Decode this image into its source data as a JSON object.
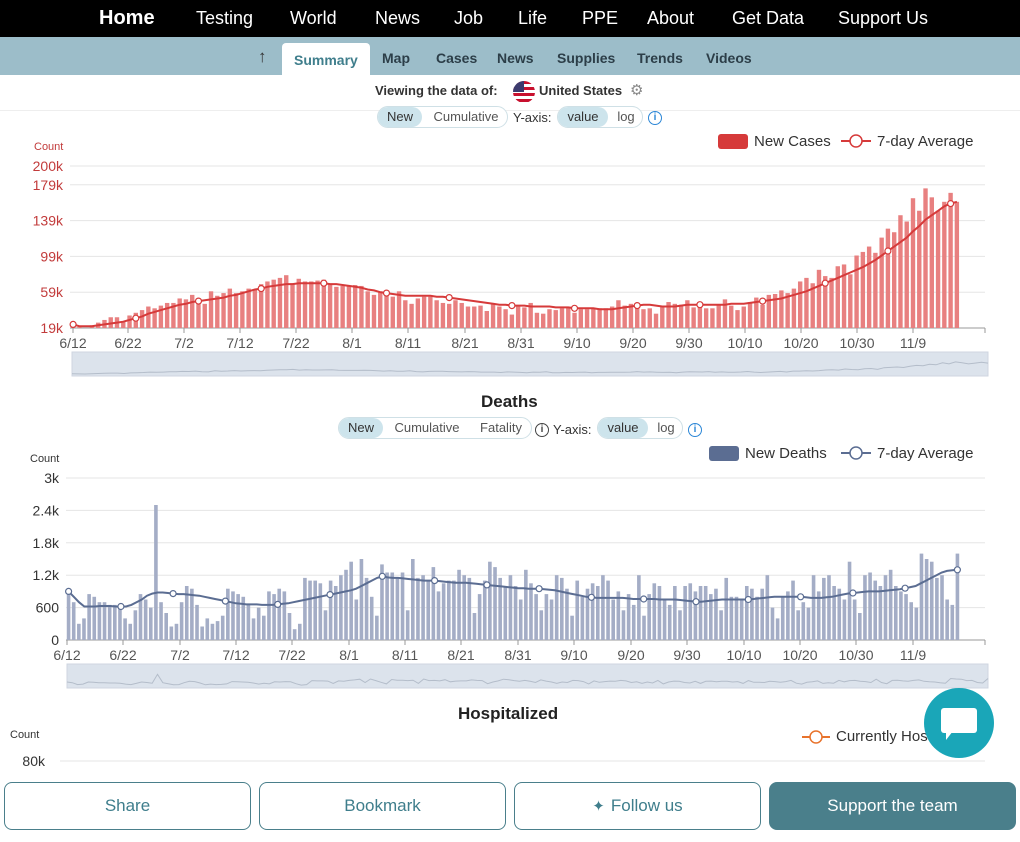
{
  "nav": {
    "items": [
      "Home",
      "Testing",
      "World",
      "News",
      "Job",
      "Life",
      "PPE",
      "About",
      "Get Data",
      "Support Us"
    ]
  },
  "subnav": {
    "active": "Summary",
    "items": [
      "Map",
      "Cases",
      "News",
      "Supplies",
      "Trends",
      "Videos"
    ]
  },
  "viewing": {
    "label": "Viewing the data of:",
    "country": "United States"
  },
  "cases_controls": {
    "new": "New",
    "cumulative": "Cumulative",
    "yaxis_label": "Y-axis:",
    "value": "value",
    "log": "log"
  },
  "deaths_controls": {
    "new": "New",
    "cumulative": "Cumulative",
    "fatality": "Fatality",
    "yaxis_label": "Y-axis:",
    "value": "value",
    "log": "log"
  },
  "hospitalized": {
    "title": "Hospitalized",
    "legend": "Currently Hos",
    "ylabel": "Count",
    "tick": "80k"
  },
  "colors": {
    "cases_bar": "#e88080",
    "cases_line": "#d63a3a",
    "deaths_bar": "#a4adc6",
    "deaths_line": "#5b6d92",
    "accent": "#4a7f8b"
  },
  "buttons": {
    "share": "Share",
    "bookmark": "Bookmark",
    "follow": "Follow us",
    "support": "Support the team"
  },
  "chart_data": [
    {
      "type": "bar",
      "title": "",
      "ylabel": "Count",
      "legend": [
        "New Cases",
        "7-day Average"
      ],
      "ylim": [
        19000,
        200000
      ],
      "yticks": [
        "19k",
        "59k",
        "99k",
        "139k",
        "179k",
        "200k"
      ],
      "ytick_values": [
        19000,
        59000,
        99000,
        139000,
        179000,
        200000
      ],
      "xticks": [
        "6/12",
        "6/22",
        "7/2",
        "7/12",
        "7/22",
        "8/1",
        "8/11",
        "8/21",
        "8/31",
        "9/10",
        "9/20",
        "9/30",
        "10/10",
        "10/20",
        "10/30",
        "11/9"
      ],
      "x_start": "6/12",
      "values": [
        22000,
        20000,
        19000,
        22000,
        25000,
        28000,
        31000,
        31000,
        26000,
        33000,
        36000,
        39000,
        43000,
        41000,
        44000,
        47000,
        47000,
        52000,
        51000,
        56000,
        49000,
        46000,
        60000,
        55000,
        58000,
        63000,
        58000,
        60000,
        63000,
        62000,
        68000,
        71000,
        73000,
        75000,
        78000,
        69000,
        74000,
        71000,
        71000,
        72000,
        73000,
        68000,
        65000,
        66000,
        66000,
        67000,
        66000,
        60000,
        56000,
        60000,
        55000,
        54000,
        60000,
        50000,
        46000,
        52000,
        54000,
        54000,
        50000,
        47000,
        46000,
        50000,
        47000,
        43000,
        43000,
        44000,
        38000,
        46000,
        43000,
        40000,
        34000,
        43000,
        42000,
        47000,
        36000,
        35000,
        40000,
        39000,
        41000,
        43000,
        36000,
        40000,
        40000,
        41000,
        41000,
        41000,
        43000,
        50000,
        44000,
        46000,
        42000,
        40000,
        41000,
        35000,
        43000,
        48000,
        46000,
        45000,
        50000,
        42000,
        46000,
        41000,
        41000,
        45000,
        51000,
        44000,
        39000,
        43000,
        48000,
        53000,
        45000,
        56000,
        57000,
        61000,
        58000,
        63000,
        71000,
        75000,
        69000,
        84000,
        77000,
        75000,
        88000,
        90000,
        79000,
        100000,
        104000,
        110000,
        103000,
        120000,
        130000,
        126000,
        145000,
        138000,
        164000,
        150000,
        175000,
        165000,
        150000,
        160000,
        170000,
        160000
      ],
      "avg": [
        23000,
        21000,
        21000,
        21000,
        22000,
        23000,
        24000,
        25000,
        26000,
        28000,
        30000,
        32000,
        35000,
        37000,
        39000,
        41000,
        43000,
        45000,
        46000,
        48000,
        49000,
        50000,
        51000,
        52000,
        53000,
        55000,
        56000,
        58000,
        60000,
        62000,
        63000,
        65000,
        66000,
        67000,
        68000,
        68000,
        69000,
        69000,
        69000,
        69000,
        69000,
        68000,
        68000,
        67000,
        66000,
        65000,
        64000,
        62000,
        61000,
        59000,
        58000,
        57000,
        56000,
        55000,
        55000,
        55000,
        55000,
        55000,
        54000,
        54000,
        53000,
        52000,
        51000,
        50000,
        49000,
        48000,
        47000,
        46000,
        45000,
        45000,
        44000,
        44000,
        44000,
        43000,
        43000,
        43000,
        43000,
        42000,
        42000,
        42000,
        41000,
        41000,
        41000,
        41000,
        40000,
        40000,
        40000,
        41000,
        42000,
        43000,
        44000,
        45000,
        45000,
        44000,
        43000,
        43000,
        43000,
        44000,
        45000,
        45000,
        45000,
        45000,
        45000,
        45000,
        45000,
        46000,
        46000,
        46000,
        47000,
        48000,
        49000,
        50000,
        51000,
        52000,
        54000,
        56000,
        58000,
        60000,
        63000,
        66000,
        69000,
        72000,
        75000,
        78000,
        81000,
        84000,
        87000,
        91000,
        95000,
        100000,
        105000,
        110000,
        115000,
        120000,
        127000,
        133000,
        140000,
        145000,
        150000,
        155000,
        158000,
        160000
      ]
    },
    {
      "type": "bar",
      "title": "Deaths",
      "ylabel": "Count",
      "legend": [
        "New Deaths",
        "7-day Average"
      ],
      "ylim": [
        0,
        3000
      ],
      "yticks": [
        "0",
        "600",
        "1.2k",
        "1.8k",
        "2.4k",
        "3k"
      ],
      "ytick_values": [
        0,
        600,
        1200,
        1800,
        2400,
        3000
      ],
      "xticks": [
        "6/12",
        "6/22",
        "7/2",
        "7/12",
        "7/22",
        "8/1",
        "8/11",
        "8/21",
        "8/31",
        "9/10",
        "9/20",
        "9/30",
        "10/10",
        "10/20",
        "10/30",
        "11/9"
      ],
      "x_start": "6/12",
      "values": [
        850,
        700,
        300,
        400,
        850,
        800,
        700,
        700,
        650,
        650,
        600,
        400,
        300,
        550,
        850,
        750,
        600,
        2500,
        700,
        500,
        250,
        300,
        700,
        1000,
        950,
        650,
        250,
        400,
        300,
        350,
        450,
        950,
        900,
        850,
        800,
        650,
        400,
        600,
        450,
        900,
        850,
        950,
        900,
        500,
        200,
        300,
        1150,
        1100,
        1100,
        1050,
        550,
        1100,
        1000,
        1200,
        1300,
        1450,
        750,
        1500,
        1150,
        800,
        450,
        1400,
        1250,
        1250,
        1150,
        1250,
        550,
        1500,
        1150,
        1200,
        1100,
        1350,
        900,
        1050,
        1100,
        1100,
        1300,
        1200,
        1150,
        500,
        850,
        1100,
        1450,
        1350,
        1150,
        1000,
        1200,
        1000,
        750,
        1300,
        1050,
        850,
        550,
        850,
        750,
        1200,
        1150,
        950,
        450,
        1100,
        800,
        950,
        1050,
        1000,
        1200,
        1100,
        750,
        900,
        550,
        850,
        650,
        1200,
        450,
        850,
        1050,
        1000,
        750,
        650,
        1000,
        550,
        1000,
        1050,
        900,
        1000,
        1000,
        850,
        950,
        550,
        1150,
        800,
        800,
        750,
        1000,
        950,
        800,
        950,
        1200,
        600,
        400,
        800,
        900,
        1100,
        550,
        700,
        600,
        1200,
        900,
        1150,
        1200,
        1000,
        950,
        750,
        1450,
        750,
        500,
        1200,
        1250,
        1100,
        1000,
        1200,
        1300,
        1000,
        900,
        850,
        700,
        600,
        1600,
        1500,
        1450,
        1150,
        1200,
        750,
        650,
        1600
      ],
      "avg": [
        900,
        800,
        700,
        620,
        620,
        620,
        630,
        630,
        630,
        620,
        620,
        620,
        650,
        700,
        750,
        820,
        860,
        880,
        880,
        870,
        860,
        850,
        850,
        840,
        830,
        820,
        800,
        780,
        760,
        740,
        720,
        700,
        680,
        670,
        660,
        660,
        660,
        650,
        650,
        650,
        660,
        670,
        680,
        700,
        720,
        740,
        760,
        780,
        800,
        820,
        840,
        860,
        880,
        900,
        920,
        950,
        1000,
        1050,
        1100,
        1150,
        1180,
        1160,
        1150,
        1150,
        1140,
        1130,
        1120,
        1110,
        1100,
        1100,
        1100,
        1090,
        1080,
        1070,
        1060,
        1060,
        1060,
        1050,
        1040,
        1030,
        1020,
        1010,
        1000,
        990,
        980,
        970,
        960,
        960,
        950,
        950,
        950,
        940,
        930,
        920,
        900,
        880,
        860,
        840,
        820,
        800,
        790,
        780,
        780,
        780,
        780,
        780,
        780,
        770,
        760,
        760,
        760,
        760,
        760,
        750,
        750,
        750,
        750,
        740,
        730,
        720,
        710,
        710,
        720,
        730,
        740,
        750,
        750,
        750,
        750,
        750,
        750,
        760,
        770,
        780,
        790,
        800,
        800,
        800,
        800,
        800,
        800,
        790,
        780,
        780,
        780,
        790,
        800,
        820,
        840,
        860,
        870,
        880,
        890,
        900,
        900,
        900,
        910,
        920,
        930,
        940,
        960,
        980,
        1000,
        1050,
        1100,
        1150,
        1200,
        1250,
        1280,
        1290,
        1300
      ]
    }
  ]
}
